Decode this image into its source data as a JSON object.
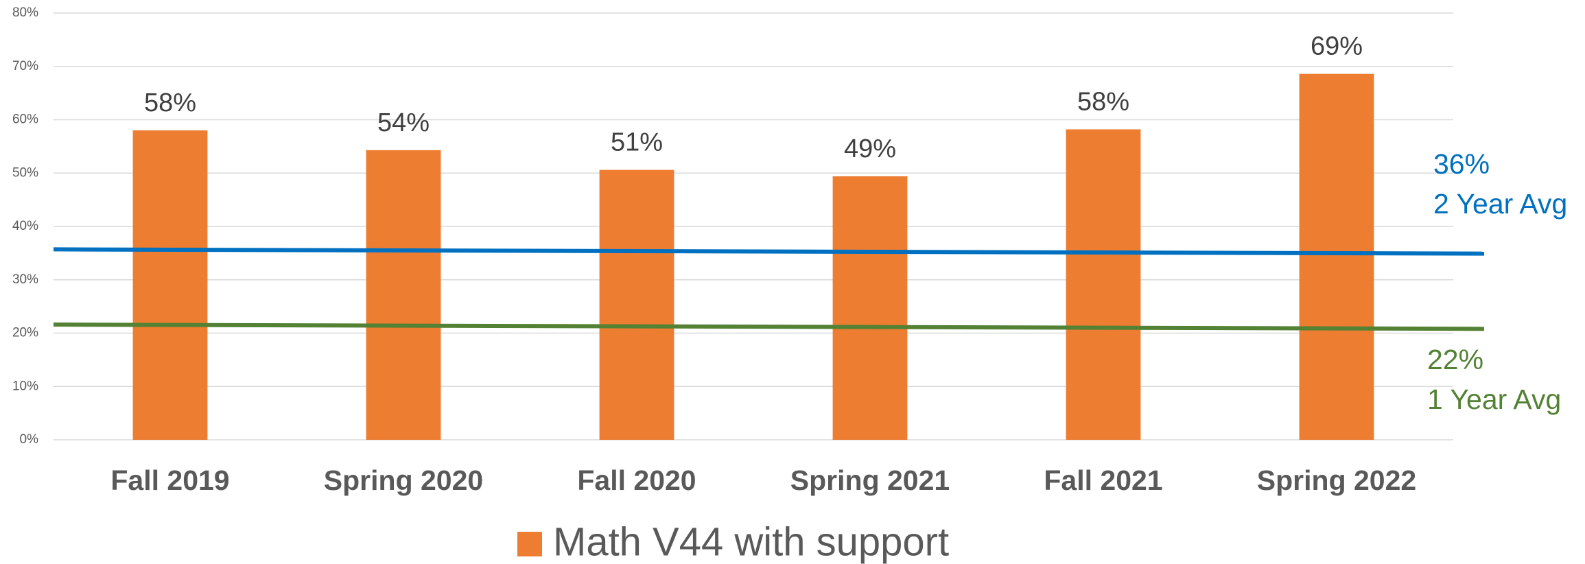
{
  "chart_data": {
    "type": "bar",
    "categories": [
      "Fall 2019",
      "Spring 2020",
      "Fall 2020",
      "Spring 2021",
      "Fall 2021",
      "Spring 2022"
    ],
    "series": [
      {
        "name": "Math V44 with support",
        "color": "#ed7d31",
        "values": [
          58,
          54.3,
          50.6,
          49.4,
          58.2,
          68.6
        ],
        "value_labels": [
          "58%",
          "54%",
          "51%",
          "49%",
          "58%",
          "69%"
        ]
      }
    ],
    "reference_lines": [
      {
        "color": "#0070c0",
        "values": [
          35.7,
          34.9
        ],
        "annotation": [
          "36%",
          "2 Year Avg"
        ]
      },
      {
        "color": "#548235",
        "values": [
          21.6,
          20.8
        ],
        "annotation": [
          "22%",
          "1 Year Avg"
        ]
      }
    ],
    "ylim": [
      0,
      80
    ],
    "yticks": [
      {
        "value": 0,
        "label": "0%"
      },
      {
        "value": 10,
        "label": "10%"
      },
      {
        "value": 20,
        "label": "20%"
      },
      {
        "value": 30,
        "label": "30%"
      },
      {
        "value": 40,
        "label": "40%"
      },
      {
        "value": 50,
        "label": "50%"
      },
      {
        "value": 60,
        "label": "60%"
      },
      {
        "value": 70,
        "label": "70%"
      },
      {
        "value": 80,
        "label": "80%"
      }
    ],
    "grid": true,
    "legend": "bottom"
  }
}
